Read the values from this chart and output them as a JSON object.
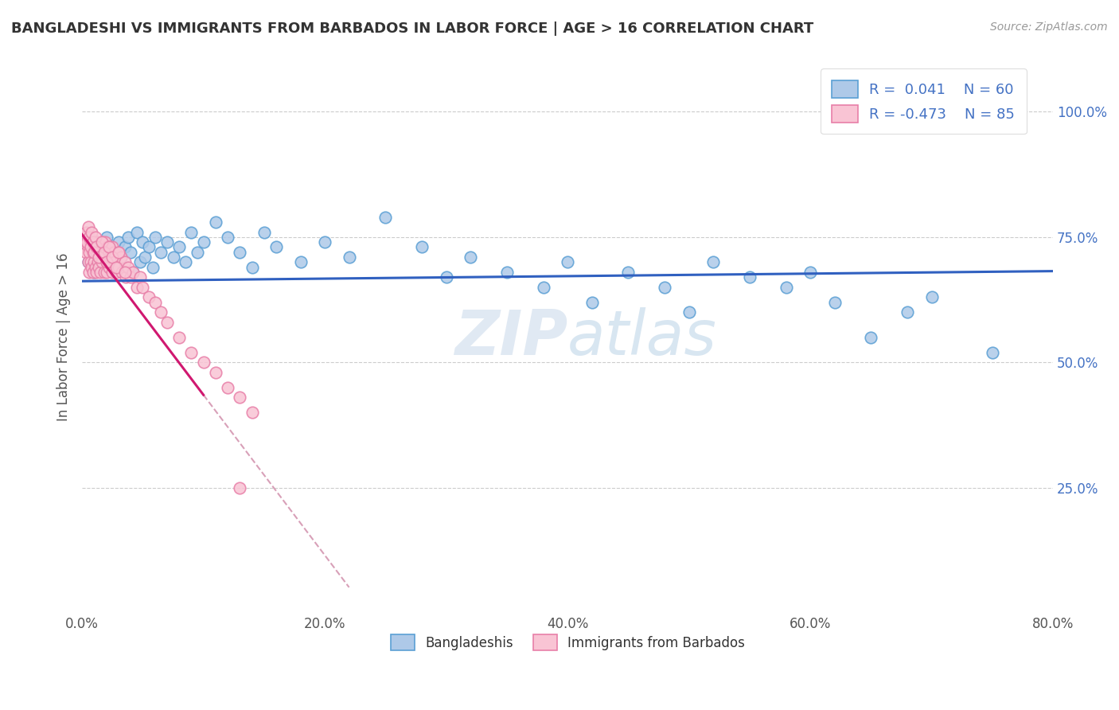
{
  "title": "BANGLADESHI VS IMMIGRANTS FROM BARBADOS IN LABOR FORCE | AGE > 16 CORRELATION CHART",
  "source_text": "Source: ZipAtlas.com",
  "ylabel": "In Labor Force | Age > 16",
  "xlim": [
    0.0,
    0.8
  ],
  "ylim": [
    0.0,
    1.1
  ],
  "xtick_labels": [
    "0.0%",
    "20.0%",
    "40.0%",
    "60.0%",
    "80.0%"
  ],
  "xtick_values": [
    0.0,
    0.2,
    0.4,
    0.6,
    0.8
  ],
  "ytick_labels": [
    "25.0%",
    "50.0%",
    "75.0%",
    "100.0%"
  ],
  "ytick_values": [
    0.25,
    0.5,
    0.75,
    1.0
  ],
  "legend_r1": "R =  0.041",
  "legend_n1": "N = 60",
  "legend_r2": "R = -0.473",
  "legend_n2": "N = 85",
  "blue_face": "#aec9e8",
  "blue_edge": "#5a9fd4",
  "pink_face": "#f9c4d4",
  "pink_edge": "#e87fa8",
  "trend_blue_color": "#3060c0",
  "trend_pink_color": "#d01870",
  "trend_dashed_color": "#d8a0b8",
  "watermark": "ZIPatlas",
  "series1_label": "Bangladeshis",
  "series2_label": "Immigrants from Barbados",
  "blue_R": 0.041,
  "blue_intercept": 0.662,
  "blue_slope": 0.025,
  "pink_R": -0.473,
  "pink_intercept": 0.755,
  "pink_slope": -3.2,
  "blue_points_x": [
    0.005,
    0.008,
    0.01,
    0.012,
    0.015,
    0.018,
    0.02,
    0.022,
    0.025,
    0.028,
    0.03,
    0.032,
    0.035,
    0.038,
    0.04,
    0.042,
    0.045,
    0.048,
    0.05,
    0.052,
    0.055,
    0.058,
    0.06,
    0.065,
    0.07,
    0.075,
    0.08,
    0.085,
    0.09,
    0.095,
    0.1,
    0.11,
    0.12,
    0.13,
    0.14,
    0.15,
    0.16,
    0.18,
    0.2,
    0.22,
    0.25,
    0.28,
    0.3,
    0.32,
    0.35,
    0.38,
    0.4,
    0.42,
    0.45,
    0.48,
    0.5,
    0.52,
    0.55,
    0.58,
    0.6,
    0.62,
    0.65,
    0.68,
    0.7,
    0.75
  ],
  "blue_points_y": [
    0.7,
    0.72,
    0.68,
    0.74,
    0.71,
    0.73,
    0.75,
    0.69,
    0.72,
    0.7,
    0.74,
    0.71,
    0.73,
    0.75,
    0.72,
    0.68,
    0.76,
    0.7,
    0.74,
    0.71,
    0.73,
    0.69,
    0.75,
    0.72,
    0.74,
    0.71,
    0.73,
    0.7,
    0.76,
    0.72,
    0.74,
    0.78,
    0.75,
    0.72,
    0.69,
    0.76,
    0.73,
    0.7,
    0.74,
    0.71,
    0.79,
    0.73,
    0.67,
    0.71,
    0.68,
    0.65,
    0.7,
    0.62,
    0.68,
    0.65,
    0.6,
    0.7,
    0.67,
    0.65,
    0.68,
    0.62,
    0.55,
    0.6,
    0.63,
    0.52
  ],
  "pink_points_x": [
    0.002,
    0.003,
    0.004,
    0.005,
    0.005,
    0.006,
    0.006,
    0.007,
    0.007,
    0.008,
    0.008,
    0.009,
    0.009,
    0.01,
    0.01,
    0.011,
    0.011,
    0.012,
    0.012,
    0.013,
    0.013,
    0.014,
    0.014,
    0.015,
    0.015,
    0.016,
    0.016,
    0.017,
    0.018,
    0.018,
    0.019,
    0.02,
    0.02,
    0.021,
    0.022,
    0.022,
    0.023,
    0.025,
    0.025,
    0.026,
    0.027,
    0.028,
    0.03,
    0.03,
    0.032,
    0.033,
    0.035,
    0.036,
    0.038,
    0.04,
    0.042,
    0.045,
    0.048,
    0.05,
    0.055,
    0.06,
    0.065,
    0.07,
    0.08,
    0.09,
    0.1,
    0.11,
    0.12,
    0.13,
    0.14,
    0.003,
    0.004,
    0.005,
    0.006,
    0.007,
    0.008,
    0.009,
    0.01,
    0.011,
    0.012,
    0.014,
    0.016,
    0.018,
    0.02,
    0.022,
    0.025,
    0.028,
    0.03,
    0.035,
    0.13
  ],
  "pink_points_y": [
    0.75,
    0.72,
    0.74,
    0.7,
    0.73,
    0.72,
    0.68,
    0.74,
    0.7,
    0.73,
    0.69,
    0.72,
    0.68,
    0.74,
    0.7,
    0.73,
    0.69,
    0.72,
    0.68,
    0.74,
    0.7,
    0.73,
    0.69,
    0.72,
    0.68,
    0.74,
    0.7,
    0.73,
    0.72,
    0.68,
    0.74,
    0.7,
    0.68,
    0.73,
    0.72,
    0.69,
    0.71,
    0.73,
    0.68,
    0.72,
    0.7,
    0.68,
    0.72,
    0.69,
    0.71,
    0.68,
    0.7,
    0.67,
    0.69,
    0.67,
    0.68,
    0.65,
    0.67,
    0.65,
    0.63,
    0.62,
    0.6,
    0.58,
    0.55,
    0.52,
    0.5,
    0.48,
    0.45,
    0.43,
    0.4,
    0.76,
    0.74,
    0.77,
    0.75,
    0.73,
    0.76,
    0.74,
    0.72,
    0.75,
    0.73,
    0.71,
    0.74,
    0.72,
    0.7,
    0.73,
    0.71,
    0.69,
    0.72,
    0.68,
    0.25
  ]
}
